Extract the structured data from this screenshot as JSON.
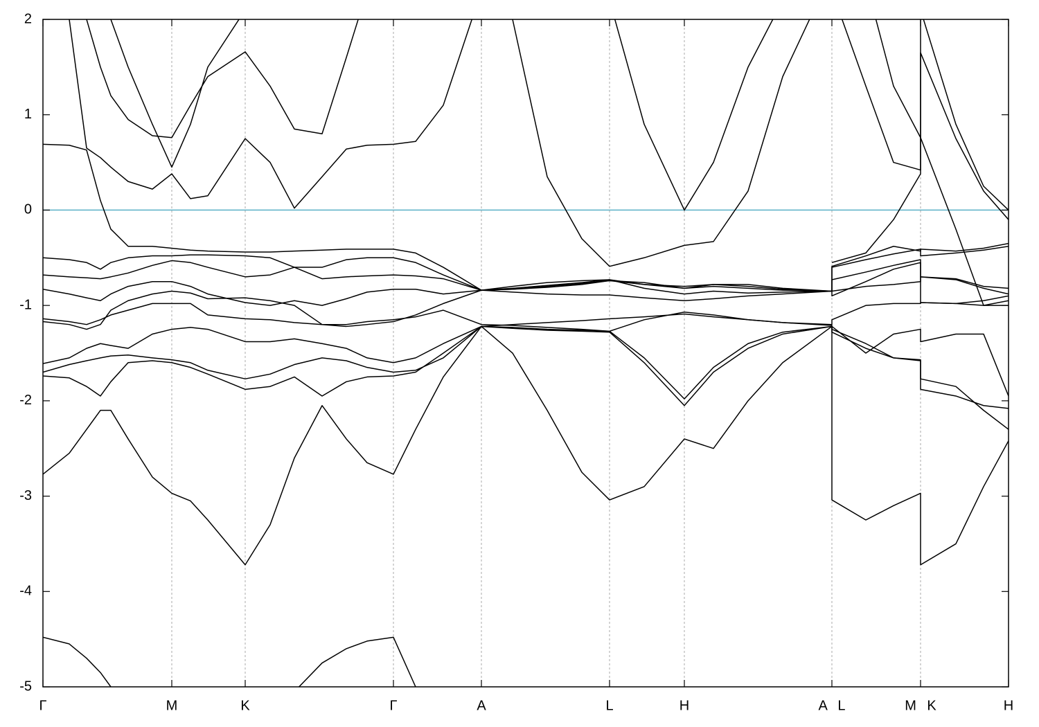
{
  "chart_data": {
    "type": "line",
    "xlim": [
      0,
      13.94
    ],
    "ylim": [
      -5,
      2
    ],
    "yticks": [
      -5,
      -4,
      -3,
      -2,
      -1,
      0,
      1,
      2
    ],
    "xticks": [
      {
        "value": 0,
        "label": "Γ"
      },
      {
        "value": 1.86,
        "label": "M"
      },
      {
        "value": 2.92,
        "label": "K"
      },
      {
        "value": 5.06,
        "label": "Γ"
      },
      {
        "value": 6.33,
        "label": "A"
      },
      {
        "value": 8.18,
        "label": "L"
      },
      {
        "value": 9.26,
        "label": "H"
      },
      {
        "value": 11.39,
        "label": "A L"
      },
      {
        "value": 12.67,
        "label": "M K"
      },
      {
        "value": 13.94,
        "label": "H"
      }
    ],
    "grid": true,
    "reference_line": {
      "value": 0,
      "color": "#5ab0c6"
    },
    "x": [
      0,
      0.38,
      0.63,
      0.83,
      0.98,
      1.23,
      1.58,
      1.86,
      2.13,
      2.38,
      2.92,
      3.28,
      3.63,
      4.03,
      4.38,
      4.68,
      5.06,
      5.38,
      5.78,
      6.33,
      6.78,
      7.28,
      7.78,
      8.18,
      8.68,
      9.26,
      9.68,
      10.18,
      10.68,
      11.39,
      11.39,
      11.88,
      12.28,
      12.67,
      12.67,
      13.18,
      13.58,
      13.94
    ],
    "series": [
      {
        "color": "#000000",
        "values": [
          -4.48,
          -4.55,
          -4.7,
          -4.85,
          -5.0,
          -5.3,
          null,
          null,
          null,
          null,
          null,
          -5.4,
          -5.05,
          -4.75,
          -4.6,
          -4.52,
          -4.48,
          -5.0,
          -5.4,
          null,
          null,
          null,
          null,
          null,
          null,
          null,
          null,
          null,
          null,
          null,
          null,
          null,
          null,
          null,
          null,
          null,
          null,
          null
        ]
      },
      {
        "color": "#000000",
        "values": [
          -2.77,
          -2.55,
          -2.3,
          -2.1,
          -2.1,
          -2.4,
          -2.8,
          -2.97,
          -3.05,
          -3.25,
          -3.72,
          -3.3,
          -2.6,
          -2.05,
          -2.4,
          -2.65,
          -2.77,
          -2.3,
          -1.75,
          -1.22,
          -1.5,
          -2.1,
          -2.75,
          -3.04,
          -2.9,
          -2.4,
          -2.5,
          -2.0,
          -1.6,
          -1.22,
          -3.04,
          -3.25,
          -3.1,
          -2.97,
          -3.72,
          -3.5,
          -2.9,
          -2.42
        ]
      },
      {
        "color": "#000000",
        "values": [
          -1.74,
          -1.76,
          -1.85,
          -1.95,
          -1.8,
          -1.6,
          -1.58,
          -1.6,
          -1.65,
          -1.72,
          -1.88,
          -1.85,
          -1.75,
          -1.95,
          -1.8,
          -1.75,
          -1.74,
          -1.7,
          -1.5,
          -1.22,
          -1.24,
          -1.26,
          -1.27,
          -1.28,
          -1.6,
          -2.05,
          -1.7,
          -1.45,
          -1.3,
          -1.22,
          -1.25,
          -1.4,
          -1.55,
          -1.58,
          -1.88,
          -1.95,
          -2.05,
          -2.08
        ]
      },
      {
        "color": "#000000",
        "values": [
          -1.7,
          -1.62,
          -1.58,
          -1.55,
          -1.53,
          -1.52,
          -1.55,
          -1.57,
          -1.6,
          -1.68,
          -1.77,
          -1.72,
          -1.62,
          -1.55,
          -1.58,
          -1.65,
          -1.7,
          -1.68,
          -1.55,
          -1.22,
          -1.23,
          -1.25,
          -1.26,
          -1.27,
          -1.55,
          -1.98,
          -1.65,
          -1.4,
          -1.28,
          -1.22,
          -1.28,
          -1.45,
          -1.55,
          -1.57,
          -1.77,
          -1.85,
          -2.1,
          -2.3
        ]
      },
      {
        "color": "#000000",
        "values": [
          -1.61,
          -1.55,
          -1.45,
          -1.4,
          -1.42,
          -1.45,
          -1.3,
          -1.25,
          -1.23,
          -1.25,
          -1.38,
          -1.38,
          -1.35,
          -1.4,
          -1.45,
          -1.55,
          -1.6,
          -1.55,
          -1.4,
          -1.22,
          -1.2,
          -1.18,
          -1.16,
          -1.14,
          -1.12,
          -1.09,
          -1.12,
          -1.15,
          -1.18,
          -1.21,
          -1.22,
          -1.5,
          -1.3,
          -1.25,
          -1.38,
          -1.3,
          -1.3,
          -1.95
        ]
      },
      {
        "color": "#000000",
        "values": [
          -1.14,
          -1.17,
          -1.2,
          -1.15,
          -1.1,
          -1.05,
          -0.98,
          -0.98,
          -0.98,
          -1.1,
          -1.14,
          -1.15,
          -1.18,
          -1.2,
          -1.2,
          -1.17,
          -1.15,
          -1.12,
          -1.05,
          -1.2,
          -1.21,
          -1.23,
          -1.25,
          -1.27,
          -1.15,
          -1.07,
          -1.1,
          -1.15,
          -1.18,
          -1.2,
          -1.15,
          -1.0,
          -0.98,
          -0.98,
          -0.97,
          -0.98,
          -0.95,
          -0.9
        ]
      },
      {
        "color": "#000000",
        "values": [
          -1.17,
          -1.2,
          -1.25,
          -1.2,
          -1.05,
          -0.95,
          -0.88,
          -0.85,
          -0.87,
          -0.93,
          -0.92,
          -0.95,
          -1.0,
          -1.2,
          -1.22,
          -1.2,
          -1.17,
          -1.1,
          -0.98,
          -0.84,
          -0.83,
          -0.8,
          -0.77,
          -0.74,
          -0.78,
          -0.82,
          -0.8,
          -0.82,
          -0.84,
          -0.85,
          -0.85,
          -0.8,
          -0.78,
          -0.75,
          -0.7,
          -0.73,
          -0.82,
          -0.88
        ]
      },
      {
        "color": "#000000",
        "values": [
          -0.83,
          -0.88,
          -0.92,
          -0.95,
          -0.88,
          -0.8,
          -0.75,
          -0.75,
          -0.8,
          -0.88,
          -0.97,
          -1.0,
          -0.95,
          -1.0,
          -0.93,
          -0.86,
          -0.83,
          -0.83,
          -0.88,
          -0.84,
          -0.86,
          -0.88,
          -0.89,
          -0.89,
          -0.92,
          -0.95,
          -0.93,
          -0.9,
          -0.88,
          -0.85,
          -0.9,
          -0.75,
          -0.62,
          -0.55,
          -0.97,
          -0.98,
          -1.0,
          -1.0
        ]
      },
      {
        "color": "#000000",
        "values": [
          -0.68,
          -0.7,
          -0.71,
          -0.72,
          -0.7,
          -0.66,
          -0.58,
          -0.53,
          -0.55,
          -0.6,
          -0.7,
          -0.68,
          -0.6,
          -0.72,
          -0.7,
          -0.69,
          -0.68,
          -0.69,
          -0.72,
          -0.84,
          -0.82,
          -0.79,
          -0.76,
          -0.73,
          -0.82,
          -0.88,
          -0.85,
          -0.87,
          -0.86,
          -0.85,
          -0.73,
          -0.65,
          -0.58,
          -0.52,
          -0.7,
          -0.72,
          -0.8,
          -0.82
        ]
      },
      {
        "color": "#000000",
        "values": [
          -0.5,
          -0.52,
          -0.55,
          -0.62,
          -0.55,
          -0.5,
          -0.48,
          -0.48,
          -0.47,
          -0.47,
          -0.48,
          -0.5,
          -0.6,
          -0.6,
          -0.52,
          -0.5,
          -0.5,
          -0.55,
          -0.68,
          -0.84,
          -0.8,
          -0.76,
          -0.74,
          -0.73,
          -0.78,
          -0.8,
          -0.78,
          -0.8,
          -0.83,
          -0.85,
          -0.6,
          -0.52,
          -0.46,
          -0.41,
          -0.48,
          -0.45,
          -0.42,
          -0.38
        ]
      },
      {
        "color": "#000000",
        "values": [
          0.69,
          0.68,
          0.63,
          0.1,
          -0.2,
          -0.38,
          -0.38,
          -0.4,
          -0.42,
          -0.43,
          -0.44,
          -0.44,
          -0.43,
          -0.42,
          -0.41,
          -0.41,
          -0.41,
          -0.45,
          -0.6,
          -0.84,
          -0.83,
          -0.81,
          -0.78,
          -0.74,
          -0.76,
          -0.82,
          -0.78,
          -0.78,
          -0.82,
          -0.85,
          -0.59,
          -0.48,
          -0.38,
          -0.43,
          -0.41,
          -0.43,
          -0.4,
          -0.35
        ]
      },
      {
        "color": "#000000",
        "values": [
          2.5,
          2.0,
          0.65,
          0.55,
          0.45,
          0.3,
          0.22,
          0.38,
          0.12,
          0.15,
          0.75,
          0.5,
          0.02,
          0.35,
          0.64,
          0.68,
          0.69,
          0.72,
          1.1,
          2.3,
          2.0,
          0.35,
          -0.3,
          -0.59,
          -0.5,
          -0.37,
          -0.33,
          0.2,
          1.4,
          2.5,
          null,
          2.4,
          1.3,
          0.76,
          1.65,
          0.75,
          0.2,
          -0.1
        ]
      },
      {
        "color": "#000000",
        "values": [
          null,
          null,
          2.0,
          1.5,
          1.2,
          0.95,
          0.78,
          0.76,
          1.1,
          1.4,
          1.66,
          1.3,
          0.85,
          0.8,
          1.6,
          2.3,
          null,
          null,
          null,
          null,
          null,
          null,
          null,
          2.2,
          0.9,
          0.0,
          0.5,
          1.5,
          2.2,
          null,
          2.3,
          1.3,
          0.5,
          0.42,
          2.1,
          0.9,
          0.25,
          0
        ]
      },
      {
        "color": "#000000",
        "values": [
          null,
          null,
          null,
          2.4,
          2.0,
          1.5,
          0.9,
          0.45,
          0.9,
          1.5,
          2.1,
          2.5,
          null,
          null,
          null,
          null,
          null,
          null,
          null,
          null,
          null,
          null,
          null,
          null,
          null,
          null,
          null,
          null,
          null,
          null,
          -0.55,
          -0.45,
          -0.1,
          0.38,
          0.76,
          -0.2,
          -1.0,
          -0.95
        ]
      }
    ]
  }
}
